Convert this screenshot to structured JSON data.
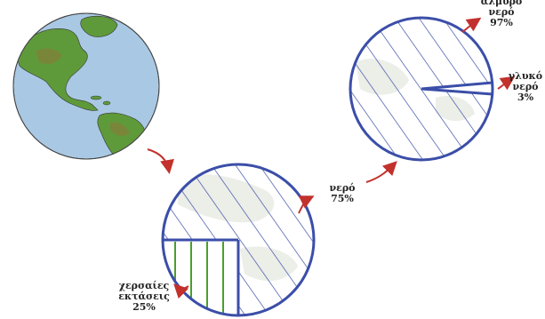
{
  "colors": {
    "ocean": "#a9c8e3",
    "land": "#5f9a3a",
    "land_dark": "#6a6a2a",
    "circle_stroke": "#3b4ea8",
    "hatch": "#3b4ea8",
    "arrow": "#c2312c",
    "land_fill_green": "#4a9e2c",
    "bg_faint": "#eceee8"
  },
  "labels": {
    "water_75": {
      "line1": "νερό",
      "line2": "75%"
    },
    "salt_97": {
      "line1": "αλμυρό",
      "line2": "νερό",
      "line3": "97%"
    },
    "fresh_3": {
      "line1": "γλυκό",
      "line2": "νερό",
      "line3": "3%"
    },
    "land_25": {
      "line1": "χερσαίες",
      "line2": "εκτάσεις",
      "line3": "25%"
    }
  }
}
